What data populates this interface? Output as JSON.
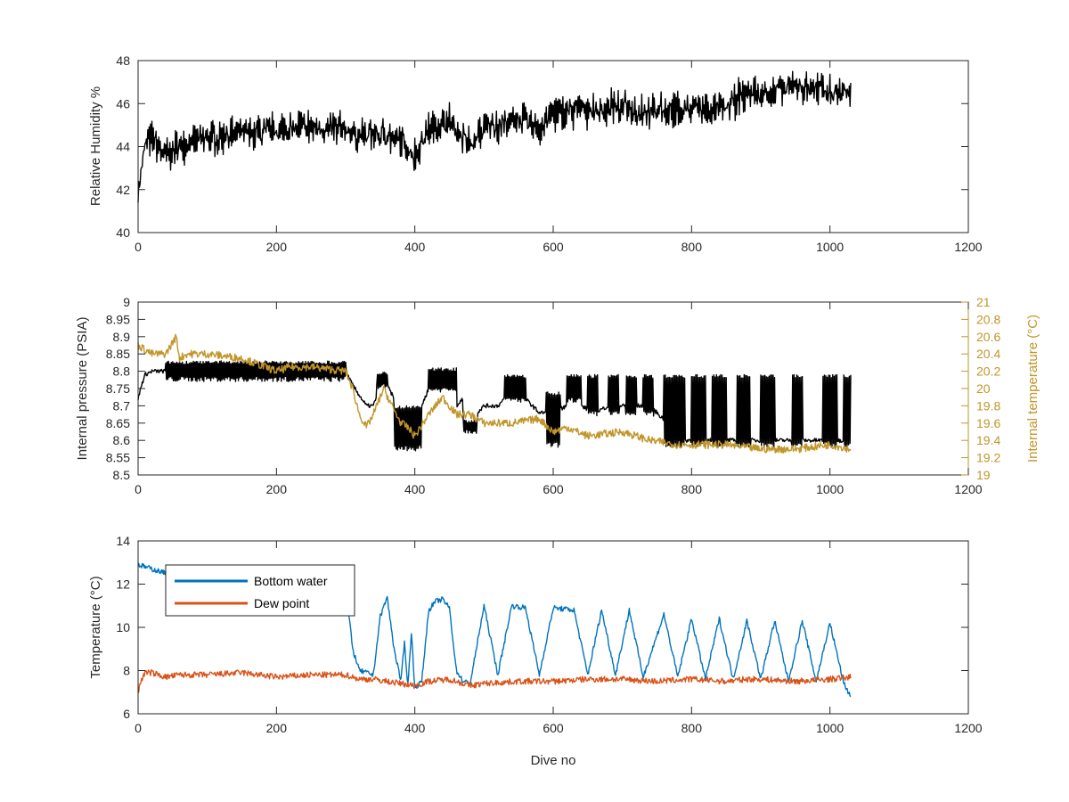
{
  "colors": {
    "black": "#000000",
    "orange_axis": "#C1952A",
    "blue": "#0072BD",
    "red": "#D95319"
  },
  "chart_data": [
    {
      "type": "line",
      "ylabel": "Relative Humidity %",
      "xlim": [
        0,
        1200
      ],
      "ylim": [
        40,
        48
      ],
      "xticks": [
        0,
        200,
        400,
        600,
        800,
        1000,
        1200
      ],
      "yticks": [
        40,
        42,
        44,
        46,
        48
      ],
      "grid": false,
      "series": [
        {
          "color": "#000000",
          "band": 0.6,
          "noise": 0.4,
          "x": [
            0,
            5,
            10,
            20,
            30,
            40,
            60,
            80,
            100,
            150,
            200,
            250,
            300,
            320,
            350,
            380,
            400,
            420,
            450,
            480,
            500,
            550,
            580,
            600,
            650,
            700,
            750,
            800,
            850,
            880,
            900,
            950,
            980,
            1000,
            1030
          ],
          "y": [
            41.8,
            43.0,
            44.0,
            44.5,
            44.0,
            43.6,
            44.0,
            44.2,
            44.4,
            44.6,
            44.7,
            44.9,
            44.8,
            44.5,
            44.6,
            44.3,
            43.5,
            44.8,
            45.2,
            44.0,
            44.8,
            45.3,
            44.8,
            45.6,
            45.7,
            45.8,
            45.6,
            45.8,
            45.7,
            46.6,
            46.4,
            46.8,
            46.7,
            46.5,
            46.6
          ]
        }
      ]
    },
    {
      "type": "line",
      "ylabel": "Internal pressure (PSIA)",
      "ylabel_right": "Internal temperature (°C)",
      "xlim": [
        0,
        1200
      ],
      "ylim": [
        8.5,
        9
      ],
      "ylim_right": [
        19,
        21
      ],
      "xticks": [
        0,
        200,
        400,
        600,
        800,
        1000,
        1200
      ],
      "yticks": [
        "8.5",
        "8.55",
        "8.6",
        "8.65",
        "8.7",
        "8.75",
        "8.8",
        "8.85",
        "8.9",
        "8.95",
        "9"
      ],
      "yticks_right": [
        "19",
        "19.2",
        "19.4",
        "19.6",
        "19.8",
        "20",
        "20.2",
        "20.4",
        "20.6",
        "20.8",
        "21"
      ],
      "grid": false,
      "series": [
        {
          "axis": "left",
          "color": "#000000",
          "noise": 0.006,
          "x": [
            0,
            5,
            10,
            20,
            30,
            40,
            60,
            80,
            100,
            150,
            200,
            250,
            300,
            310,
            330,
            340,
            345,
            350,
            360,
            370,
            380,
            390,
            400,
            410,
            420,
            440,
            460,
            470,
            480,
            490,
            500,
            520,
            540,
            560,
            580,
            600,
            620,
            640,
            660,
            680,
            700,
            720,
            740,
            760,
            780,
            800,
            840,
            880,
            920,
            960,
            1000,
            1030
          ],
          "y": [
            8.72,
            8.76,
            8.79,
            8.8,
            8.8,
            8.8,
            8.8,
            8.8,
            8.8,
            8.8,
            8.8,
            8.8,
            8.8,
            8.76,
            8.7,
            8.7,
            8.73,
            8.78,
            8.76,
            8.72,
            8.7,
            8.66,
            8.62,
            8.7,
            8.75,
            8.76,
            8.7,
            8.72,
            8.68,
            8.68,
            8.7,
            8.7,
            8.74,
            8.72,
            8.68,
            8.68,
            8.7,
            8.7,
            8.68,
            8.7,
            8.7,
            8.7,
            8.7,
            8.66,
            8.6,
            8.6,
            8.6,
            8.6,
            8.6,
            8.6,
            8.6,
            8.6
          ],
          "bursts": [
            [
              40,
              300,
              8.77,
              8.83
            ],
            [
              345,
              360,
              8.75,
              8.8
            ],
            [
              370,
              410,
              8.57,
              8.7
            ],
            [
              420,
              460,
              8.74,
              8.81
            ],
            [
              470,
              490,
              8.62,
              8.66
            ],
            [
              530,
              560,
              8.71,
              8.79
            ],
            [
              590,
              610,
              8.58,
              8.74
            ],
            [
              620,
              640,
              8.71,
              8.79
            ],
            [
              650,
              665,
              8.67,
              8.79
            ],
            [
              680,
              695,
              8.67,
              8.79
            ],
            [
              705,
              720,
              8.67,
              8.79
            ],
            [
              730,
              745,
              8.67,
              8.79
            ],
            [
              760,
              790,
              8.58,
              8.79
            ],
            [
              800,
              820,
              8.58,
              8.79
            ],
            [
              830,
              850,
              8.58,
              8.79
            ],
            [
              865,
              885,
              8.58,
              8.79
            ],
            [
              900,
              920,
              8.58,
              8.79
            ],
            [
              945,
              960,
              8.58,
              8.79
            ],
            [
              990,
              1010,
              8.58,
              8.79
            ],
            [
              1020,
              1030,
              8.58,
              8.79
            ]
          ]
        },
        {
          "axis": "right",
          "color": "#C1952A",
          "noise": 0.045,
          "x": [
            0,
            10,
            20,
            40,
            55,
            60,
            70,
            100,
            150,
            200,
            220,
            250,
            300,
            310,
            320,
            330,
            340,
            355,
            370,
            380,
            390,
            400,
            420,
            440,
            460,
            480,
            500,
            540,
            580,
            600,
            620,
            650,
            700,
            740,
            780,
            800,
            850,
            900,
            950,
            1000,
            1030
          ],
          "y": [
            20.5,
            20.45,
            20.4,
            20.4,
            20.6,
            20.35,
            20.4,
            20.4,
            20.35,
            20.2,
            20.25,
            20.25,
            20.2,
            20.0,
            19.7,
            19.55,
            19.7,
            20.0,
            19.75,
            19.6,
            19.55,
            19.45,
            19.7,
            19.9,
            19.7,
            19.7,
            19.6,
            19.6,
            19.65,
            19.5,
            19.55,
            19.45,
            19.5,
            19.4,
            19.35,
            19.35,
            19.35,
            19.3,
            19.3,
            19.35,
            19.3
          ]
        }
      ]
    },
    {
      "type": "line",
      "xlabel": "Dive no",
      "ylabel": "Temperature (°C)",
      "xlim": [
        0,
        1200
      ],
      "ylim": [
        6,
        14
      ],
      "xticks": [
        0,
        200,
        400,
        600,
        800,
        1000,
        1200
      ],
      "yticks": [
        6,
        8,
        10,
        12,
        14
      ],
      "grid": false,
      "legend_position": "top-left",
      "series": [
        {
          "name": "Bottom water",
          "color": "#0072BD",
          "noise": 0.12,
          "x": [
            0,
            10,
            20,
            40,
            60,
            80,
            100,
            150,
            200,
            300,
            305,
            310,
            320,
            340,
            350,
            360,
            370,
            380,
            385,
            390,
            395,
            400,
            410,
            420,
            430,
            440,
            450,
            460,
            470,
            480,
            500,
            520,
            540,
            560,
            580,
            600,
            630,
            650,
            670,
            690,
            710,
            730,
            760,
            780,
            800,
            820,
            840,
            860,
            880,
            900,
            920,
            940,
            960,
            980,
            1000,
            1020,
            1030
          ],
          "y": [
            12.9,
            12.8,
            12.7,
            12.5,
            12.4,
            12.2,
            12.1,
            11.9,
            11.7,
            11.5,
            10.5,
            9.0,
            8.0,
            7.8,
            10.5,
            11.4,
            9.0,
            7.5,
            9.3,
            7.3,
            9.8,
            7.2,
            7.5,
            10.8,
            11.2,
            11.3,
            10.9,
            8.0,
            7.5,
            7.4,
            11.0,
            7.8,
            11.0,
            10.9,
            7.8,
            10.9,
            10.8,
            7.8,
            10.8,
            7.8,
            10.8,
            7.7,
            10.6,
            7.7,
            10.4,
            7.6,
            10.4,
            7.6,
            10.3,
            7.6,
            10.3,
            7.5,
            10.3,
            7.5,
            10.2,
            7.4,
            6.8
          ]
        },
        {
          "name": "Dew point",
          "color": "#D95319",
          "noise": 0.14,
          "x": [
            0,
            5,
            10,
            20,
            40,
            60,
            100,
            150,
            200,
            250,
            300,
            320,
            340,
            360,
            380,
            400,
            420,
            450,
            480,
            500,
            550,
            600,
            650,
            700,
            750,
            800,
            850,
            880,
            900,
            950,
            1000,
            1030
          ],
          "y": [
            7.0,
            7.6,
            7.9,
            7.9,
            7.7,
            7.8,
            7.8,
            7.9,
            7.7,
            7.8,
            7.8,
            7.6,
            7.6,
            7.5,
            7.4,
            7.3,
            7.5,
            7.6,
            7.3,
            7.4,
            7.5,
            7.5,
            7.6,
            7.6,
            7.5,
            7.6,
            7.5,
            7.6,
            7.6,
            7.5,
            7.6,
            7.7
          ]
        }
      ]
    }
  ]
}
